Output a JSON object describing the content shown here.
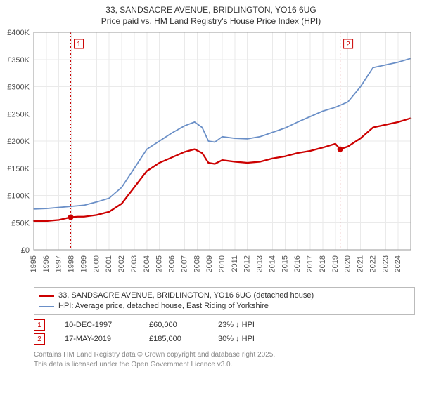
{
  "title_line1": "33, SANDSACRE AVENUE, BRIDLINGTON, YO16 6UG",
  "title_line2": "Price paid vs. HM Land Registry's House Price Index (HPI)",
  "chart": {
    "type": "line",
    "background_color": "#ffffff",
    "plot_bg": "#ffffff",
    "grid_color": "#eaeaea",
    "axis_color": "#999999",
    "x": {
      "min": 1995,
      "max": 2025,
      "ticks": [
        1995,
        1996,
        1997,
        1998,
        1999,
        2000,
        2001,
        2002,
        2003,
        2004,
        2005,
        2006,
        2007,
        2008,
        2009,
        2010,
        2011,
        2012,
        2013,
        2014,
        2015,
        2016,
        2017,
        2018,
        2019,
        2020,
        2021,
        2022,
        2023,
        2024
      ],
      "tick_fontsize": 11
    },
    "y": {
      "min": 0,
      "max": 400000,
      "ticks": [
        0,
        50000,
        100000,
        150000,
        200000,
        250000,
        300000,
        350000,
        400000
      ],
      "tick_labels": [
        "£0",
        "£50K",
        "£100K",
        "£150K",
        "£200K",
        "£250K",
        "£300K",
        "£350K",
        "£400K"
      ],
      "tick_fontsize": 11
    },
    "series": [
      {
        "id": "property",
        "label": "33, SANDSACRE AVENUE, BRIDLINGTON, YO16 6UG (detached house)",
        "color": "#cc0000",
        "line_width": 2.3,
        "data": [
          [
            1995,
            53000
          ],
          [
            1996,
            53000
          ],
          [
            1997,
            55000
          ],
          [
            1997.94,
            60000
          ],
          [
            1998.5,
            61000
          ],
          [
            1999,
            61000
          ],
          [
            2000,
            64000
          ],
          [
            2001,
            70000
          ],
          [
            2002,
            85000
          ],
          [
            2003,
            115000
          ],
          [
            2004,
            145000
          ],
          [
            2005,
            160000
          ],
          [
            2006,
            170000
          ],
          [
            2007,
            180000
          ],
          [
            2007.8,
            185000
          ],
          [
            2008.4,
            178000
          ],
          [
            2008.9,
            160000
          ],
          [
            2009.4,
            158000
          ],
          [
            2010,
            165000
          ],
          [
            2011,
            162000
          ],
          [
            2012,
            160000
          ],
          [
            2013,
            162000
          ],
          [
            2014,
            168000
          ],
          [
            2015,
            172000
          ],
          [
            2016,
            178000
          ],
          [
            2017,
            182000
          ],
          [
            2018,
            188000
          ],
          [
            2019,
            195000
          ],
          [
            2019.38,
            185000
          ],
          [
            2020,
            190000
          ],
          [
            2021,
            205000
          ],
          [
            2022,
            225000
          ],
          [
            2023,
            230000
          ],
          [
            2024,
            235000
          ],
          [
            2025,
            242000
          ]
        ]
      },
      {
        "id": "hpi",
        "label": "HPI: Average price, detached house, East Riding of Yorkshire",
        "color": "#6a8fc7",
        "line_width": 1.8,
        "data": [
          [
            1995,
            75000
          ],
          [
            1996,
            76000
          ],
          [
            1997,
            78000
          ],
          [
            1998,
            80000
          ],
          [
            1999,
            82000
          ],
          [
            2000,
            88000
          ],
          [
            2001,
            95000
          ],
          [
            2002,
            115000
          ],
          [
            2003,
            150000
          ],
          [
            2004,
            185000
          ],
          [
            2005,
            200000
          ],
          [
            2006,
            215000
          ],
          [
            2007,
            228000
          ],
          [
            2007.8,
            235000
          ],
          [
            2008.4,
            225000
          ],
          [
            2008.9,
            200000
          ],
          [
            2009.4,
            198000
          ],
          [
            2010,
            208000
          ],
          [
            2011,
            205000
          ],
          [
            2012,
            204000
          ],
          [
            2013,
            208000
          ],
          [
            2014,
            216000
          ],
          [
            2015,
            224000
          ],
          [
            2016,
            235000
          ],
          [
            2017,
            245000
          ],
          [
            2018,
            255000
          ],
          [
            2019,
            262000
          ],
          [
            2020,
            272000
          ],
          [
            2021,
            300000
          ],
          [
            2022,
            335000
          ],
          [
            2023,
            340000
          ],
          [
            2024,
            345000
          ],
          [
            2025,
            352000
          ]
        ]
      }
    ],
    "events": [
      {
        "n": 1,
        "year": 1997.94,
        "value": 60000,
        "line_color": "#cc0000"
      },
      {
        "n": 2,
        "year": 2019.38,
        "value": 185000,
        "line_color": "#cc0000"
      }
    ],
    "marker_color": "#cc0000",
    "marker_radius": 4
  },
  "legend": {
    "items": [
      {
        "color": "#cc0000",
        "label": "33, SANDSACRE AVENUE, BRIDLINGTON, YO16 6UG (detached house)",
        "width": 2.3
      },
      {
        "color": "#6a8fc7",
        "label": "HPI: Average price, detached house, East Riding of Yorkshire",
        "width": 1.8
      }
    ]
  },
  "events_table": [
    {
      "n": "1",
      "date": "10-DEC-1997",
      "price": "£60,000",
      "diff": "23% ↓ HPI"
    },
    {
      "n": "2",
      "date": "17-MAY-2019",
      "price": "£185,000",
      "diff": "30% ↓ HPI"
    }
  ],
  "footer_line1": "Contains HM Land Registry data © Crown copyright and database right 2025.",
  "footer_line2": "This data is licensed under the Open Government Licence v3.0."
}
